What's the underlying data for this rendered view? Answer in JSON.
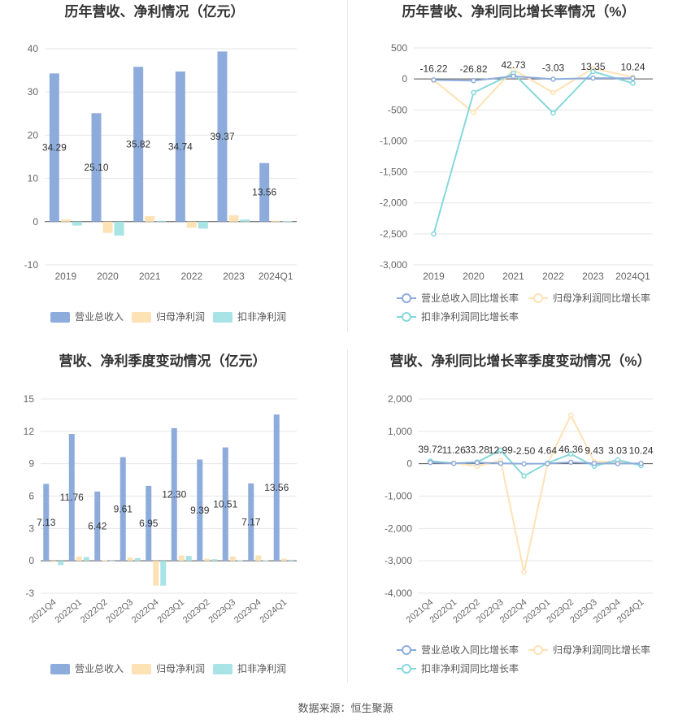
{
  "colors": {
    "revenue_bar": "#8eacdb",
    "netprofit_bar": "#fde2b5",
    "deducted_bar": "#a8e3e6",
    "revenue_line": "#8eacdb",
    "netprofit_line": "#fde2b5",
    "deducted_line": "#85d8dc",
    "grid": "#e6e6e6",
    "axis_text": "#666666",
    "label_text": "#333333"
  },
  "legend_bar": [
    "营业总收入",
    "归母净利润",
    "扣非净利润"
  ],
  "legend_line": [
    "营业总收入同比增长率",
    "归母净利润同比增长率",
    "扣非净利润同比增长率"
  ],
  "footer": {
    "source": "数据来源：恒生聚源"
  },
  "chart_data": [
    {
      "type": "bar",
      "title": "历年营收、净利情况（亿元）",
      "categories": [
        "2019",
        "2020",
        "2021",
        "2022",
        "2023",
        "2024Q1"
      ],
      "series": [
        {
          "name": "营业总收入",
          "values": [
            34.29,
            25.1,
            35.82,
            34.74,
            39.37,
            13.56
          ]
        },
        {
          "name": "归母净利润",
          "values": [
            0.5,
            -2.6,
            1.3,
            -1.4,
            1.5,
            0.2
          ]
        },
        {
          "name": "扣非净利润",
          "values": [
            -0.9,
            -3.2,
            0.2,
            -1.6,
            0.5,
            0.1
          ]
        }
      ],
      "data_labels": [
        "34.29",
        "25.10",
        "35.82",
        "34.74",
        "39.37",
        "13.56"
      ],
      "ylim": [
        -10,
        40
      ],
      "yticks": [
        -10,
        0,
        10,
        20,
        30,
        40
      ],
      "ytick_labels": [
        "-10",
        "0",
        "10",
        "20",
        "30",
        "40"
      ],
      "grid": true,
      "legend": "bottom"
    },
    {
      "type": "line",
      "title": "历年营收、净利同比增长率情况（%）",
      "categories": [
        "2019",
        "2020",
        "2021",
        "2022",
        "2023",
        "2024Q1"
      ],
      "series": [
        {
          "name": "营业总收入同比增长率",
          "values": [
            -16.22,
            -26.82,
            42.73,
            -3.03,
            13.35,
            10.24
          ]
        },
        {
          "name": "归母净利润同比增长率",
          "values": [
            -20,
            -540,
            150,
            -220,
            170,
            30
          ]
        },
        {
          "name": "扣非净利润同比增长率",
          "values": [
            -2500,
            -220,
            90,
            -550,
            120,
            -70
          ]
        }
      ],
      "data_labels": [
        "-16.22",
        "-26.82",
        "42.73",
        "-3.03",
        "13.35",
        "10.24"
      ],
      "ylim": [
        -3000,
        500
      ],
      "yticks": [
        -3000,
        -2500,
        -2000,
        -1500,
        -1000,
        -500,
        0,
        500
      ],
      "ytick_labels": [
        "-3,000",
        "-2,500",
        "-2,000",
        "-1,500",
        "-1,000",
        "-500",
        "0",
        "500"
      ],
      "grid": true,
      "legend": "bottom"
    },
    {
      "type": "bar",
      "title": "营收、净利季度变动情况（亿元）",
      "categories": [
        "2021Q4",
        "2022Q1",
        "2022Q2",
        "2022Q3",
        "2022Q4",
        "2023Q1",
        "2023Q2",
        "2023Q3",
        "2023Q4",
        "2024Q1"
      ],
      "series": [
        {
          "name": "营业总收入",
          "values": [
            7.13,
            11.76,
            6.42,
            9.61,
            6.95,
            12.3,
            9.39,
            10.51,
            7.17,
            13.56
          ]
        },
        {
          "name": "归母净利润",
          "values": [
            -0.1,
            0.4,
            0.05,
            0.3,
            -2.3,
            0.5,
            0.2,
            0.4,
            0.5,
            0.2
          ]
        },
        {
          "name": "扣非净利润",
          "values": [
            -0.4,
            0.35,
            0.02,
            0.25,
            -2.3,
            0.45,
            0.15,
            0.05,
            0.05,
            0.1
          ]
        }
      ],
      "data_labels": [
        "7.13",
        "11.76",
        "6.42",
        "9.61",
        "6.95",
        "12.30",
        "9.39",
        "10.51",
        "7.17",
        "13.56"
      ],
      "ylim": [
        -3,
        15
      ],
      "yticks": [
        -3,
        0,
        3,
        6,
        9,
        12,
        15
      ],
      "ytick_labels": [
        "-3",
        "0",
        "3",
        "6",
        "9",
        "12",
        "15"
      ],
      "grid": true,
      "legend": "bottom"
    },
    {
      "type": "line",
      "title": "营收、净利同比增长率季度变动情况（%）",
      "categories": [
        "2021Q4",
        "2022Q1",
        "2022Q2",
        "2022Q3",
        "2022Q4",
        "2023Q1",
        "2023Q2",
        "2023Q3",
        "2023Q4",
        "2024Q1"
      ],
      "series": [
        {
          "name": "营业总收入同比增长率",
          "values": [
            39.72,
            11.26,
            33.28,
            12.99,
            -2.5,
            4.64,
            46.36,
            9.43,
            3.03,
            10.24
          ]
        },
        {
          "name": "归母净利润同比增长率",
          "values": [
            50,
            20,
            -80,
            100,
            -3350,
            -10,
            1500,
            60,
            60,
            -20
          ]
        },
        {
          "name": "扣非净利润同比增长率",
          "values": [
            80,
            10,
            50,
            420,
            -380,
            20,
            300,
            -80,
            120,
            -60
          ]
        }
      ],
      "data_labels": [
        "39.72",
        "11.26",
        "33.28",
        "12.99",
        "-2.50",
        "4.64",
        "46.36",
        "9.43",
        "3.03",
        "10.24"
      ],
      "ylim": [
        -4000,
        2000
      ],
      "yticks": [
        -4000,
        -3000,
        -2000,
        -1000,
        0,
        1000,
        2000
      ],
      "ytick_labels": [
        "-4,000",
        "-3,000",
        "-2,000",
        "-1,000",
        "0",
        "1,000",
        "2,000"
      ],
      "grid": true,
      "legend": "bottom"
    }
  ]
}
